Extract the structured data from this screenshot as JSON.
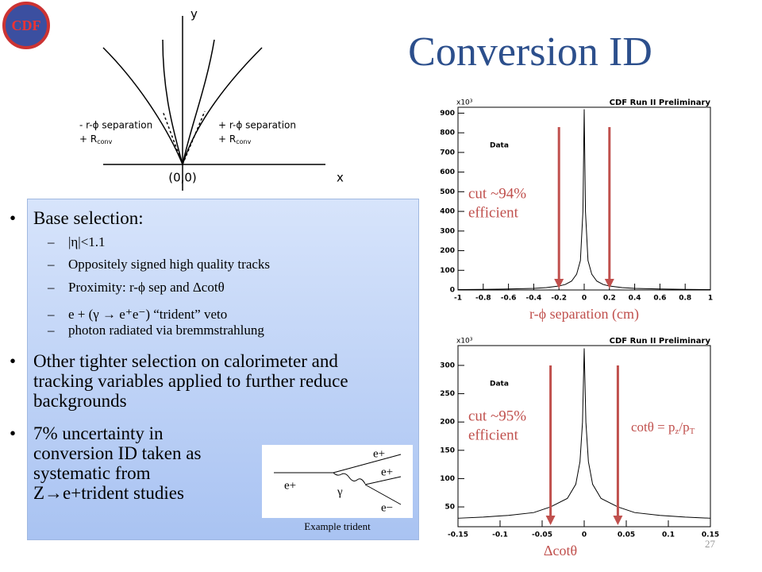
{
  "title": "Conversion ID",
  "logo": "CDF",
  "page_number": "27",
  "diagram": {
    "y_axis": "y",
    "x_axis": "x",
    "origin": "(0,0)",
    "left_label": [
      "- r-ϕ separation",
      "+ R",
      "conv"
    ],
    "right_label": [
      "+ r-ϕ separation",
      "+ R",
      "conv"
    ]
  },
  "bullets": [
    {
      "text": "Base selection:",
      "items": [
        "|η|<1.1",
        "Oppositely signed high quality tracks",
        "Proximity: r-ϕ sep and Δcotθ",
        "e + (γ → e⁺e⁻) “trident” veto",
        "photon radiated via bremmstrahlung"
      ]
    },
    {
      "text": "Other tighter selection on calorimeter and tracking variables applied to further reduce backgrounds"
    },
    {
      "text": "7% uncertainty in conversion ID taken as systematic from Z→e+trident studies"
    }
  ],
  "trident": {
    "labels": [
      "e+",
      "e+",
      "γ",
      "e+",
      "e−"
    ],
    "caption": "Example trident"
  },
  "chart_data": [
    {
      "type": "line",
      "title": "CDF Run II Preliminary",
      "legend": "Data",
      "y_multiplier": "x10³",
      "x_label": "r-ϕ separation (cm)",
      "annotation": [
        "cut ~94%",
        "efficient"
      ],
      "color": "#000000",
      "cut_color": "#c0504d",
      "x": [
        -1,
        -0.8,
        -0.6,
        -0.4,
        -0.3,
        -0.2,
        -0.15,
        -0.1,
        -0.06,
        -0.03,
        -0.01,
        0,
        0.01,
        0.03,
        0.06,
        0.1,
        0.15,
        0.2,
        0.3,
        0.4,
        0.6,
        0.8,
        1
      ],
      "values": [
        2,
        3,
        5,
        8,
        12,
        20,
        28,
        45,
        80,
        150,
        400,
        920,
        400,
        150,
        80,
        45,
        28,
        20,
        12,
        8,
        5,
        3,
        2
      ],
      "cuts": [
        -0.2,
        0.2
      ],
      "xlim": [
        -1,
        1
      ],
      "xticks": [
        -1,
        -0.8,
        -0.6,
        -0.4,
        -0.2,
        0,
        0.2,
        0.4,
        0.6,
        0.8,
        1
      ],
      "ylim": [
        0,
        930
      ],
      "yticks": [
        0,
        100,
        200,
        300,
        400,
        500,
        600,
        700,
        800,
        900
      ]
    },
    {
      "type": "line",
      "title": "CDF Run II Preliminary",
      "legend": "Data",
      "y_multiplier": "x10³",
      "x_label": "Δcotθ",
      "annotation": [
        "cut ~95%",
        "efficient"
      ],
      "formula": [
        "cotθ = p",
        "z",
        "/p",
        "T"
      ],
      "color": "#000000",
      "cut_color": "#c0504d",
      "x": [
        -0.15,
        -0.12,
        -0.09,
        -0.06,
        -0.04,
        -0.02,
        -0.01,
        -0.005,
        -0.002,
        0,
        0.002,
        0.005,
        0.01,
        0.02,
        0.04,
        0.06,
        0.09,
        0.12,
        0.15
      ],
      "values": [
        30,
        32,
        35,
        40,
        50,
        65,
        90,
        130,
        200,
        330,
        200,
        130,
        90,
        65,
        50,
        40,
        35,
        32,
        30
      ],
      "cuts": [
        -0.04,
        0.04
      ],
      "xlim": [
        -0.15,
        0.15
      ],
      "xticks": [
        -0.15,
        -0.1,
        -0.05,
        0,
        0.05,
        0.1,
        0.15
      ],
      "ylim": [
        15,
        335
      ],
      "yticks": [
        50,
        100,
        150,
        200,
        250,
        300
      ]
    }
  ]
}
